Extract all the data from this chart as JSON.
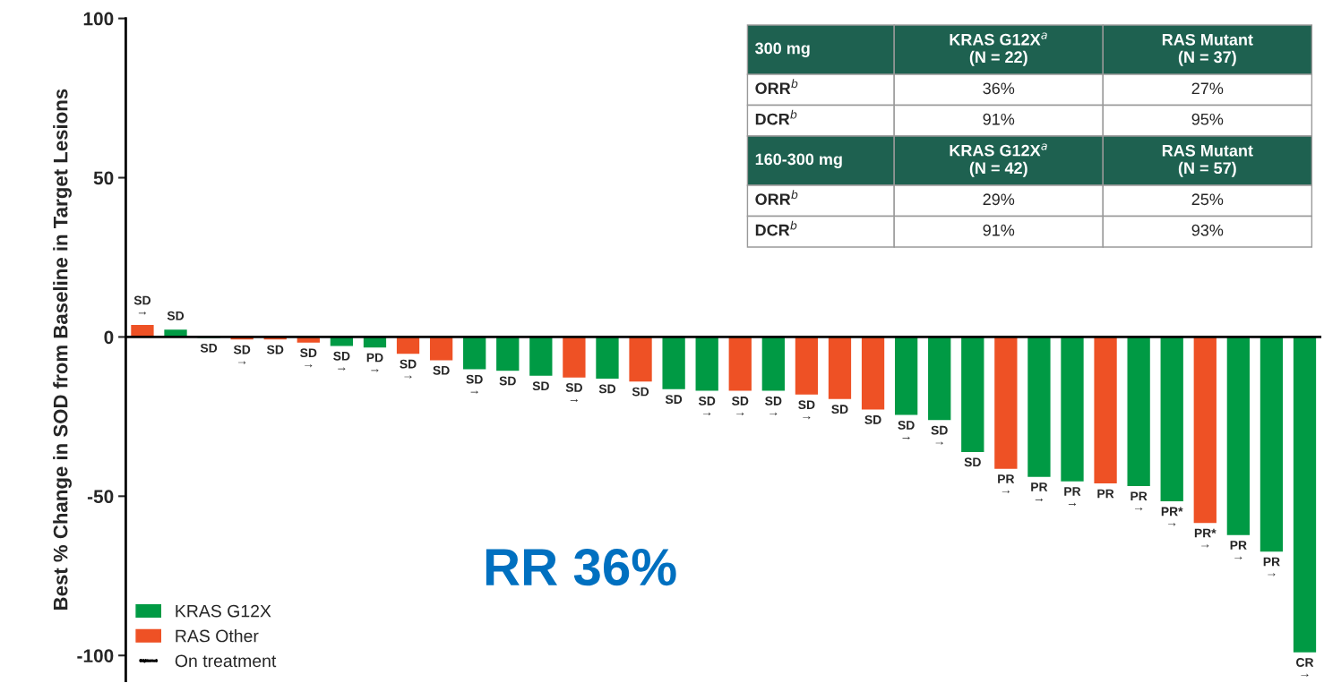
{
  "chart_data": {
    "type": "bar",
    "ylabel": "Best % Change in SOD from Baseline in Target Lesions",
    "categories": [
      null,
      null,
      null,
      null,
      null,
      null,
      null,
      null,
      null,
      null,
      null,
      null,
      null,
      null,
      null,
      null,
      null,
      null,
      null,
      null,
      null,
      null,
      null,
      null,
      null,
      null,
      null,
      null,
      null,
      null,
      null,
      null,
      null,
      null,
      null,
      null
    ],
    "series": [
      {
        "name": "KRAS G12X",
        "color": "#009a44",
        "values": [
          null,
          2.5,
          -0.5,
          null,
          null,
          null,
          -3,
          -3.5,
          null,
          null,
          -10.3,
          -10.8,
          -12.4,
          null,
          -13.3,
          null,
          -16.6,
          -17.1,
          null,
          -17.1,
          null,
          null,
          null,
          -24.7,
          -26.3,
          -36.3,
          null,
          -44.1,
          -45.5,
          null,
          -47,
          -51.8,
          null,
          -62.4,
          -67.6,
          -99.2
        ],
        "value_labels": [
          null,
          "SD",
          "SD",
          null,
          null,
          null,
          "SD\n→",
          "PD\n→",
          null,
          null,
          "SD\n→",
          "SD",
          "SD",
          null,
          "SD",
          null,
          "SD",
          "SD\n→",
          null,
          "SD\n→",
          null,
          null,
          null,
          "SD\n→",
          "SD\n→",
          "SD",
          null,
          "PR\n→",
          "PR\n→",
          null,
          "PR\n→",
          "PR*\n→",
          null,
          "PR\n→",
          "PR\n→",
          "CR\n→"
        ]
      },
      {
        "name": "RAS Other",
        "color": "#ee5125",
        "values": [
          4,
          null,
          null,
          -1,
          -1,
          -2,
          null,
          null,
          -5.5,
          -7.5,
          null,
          null,
          null,
          -12.9,
          null,
          -14.2,
          null,
          null,
          -17.1,
          null,
          -18.3,
          -19.7,
          -23,
          null,
          null,
          null,
          -41.6,
          null,
          null,
          -46.2,
          null,
          null,
          -58.6,
          null,
          null,
          null
        ],
        "value_labels": [
          "SD\n→",
          null,
          null,
          "SD\n→",
          "SD",
          "SD\n→",
          null,
          null,
          "SD\n→",
          "SD",
          null,
          null,
          null,
          "SD\n→",
          null,
          "SD",
          null,
          null,
          "SD\n→",
          null,
          "SD\n→",
          "SD",
          "SD",
          null,
          null,
          null,
          "PR\n→",
          null,
          null,
          "PR",
          null,
          null,
          "PR*\n→",
          null,
          null,
          null
        ]
      }
    ],
    "ylim": [
      -108,
      100
    ],
    "yticks": [
      -100,
      -50,
      0,
      50,
      100
    ],
    "tick_labels": "y",
    "grid": false,
    "ref_lines": [
      {
        "axis": "y",
        "value": 0,
        "color": "#000000"
      }
    ],
    "legend": "bottom left",
    "annotations": [
      "RR 36%",
      "On treatment",
      "300 mg",
      "KRAS G12X$^{a}$\n(N = 22)",
      "RAS Mutant\n(N = 37)",
      "ORR$^{b}$",
      "36%",
      "27%",
      "DCR$^{b}$",
      "91%",
      "95%",
      "160-300 mg",
      "KRAS G12X$^{a}$\n(N = 42)",
      "RAS Mutant\n(N = 57)",
      "ORR$^{b}$",
      "29%",
      "25%",
      "DCR$^{b}$",
      "91%",
      "93%"
    ]
  }
}
